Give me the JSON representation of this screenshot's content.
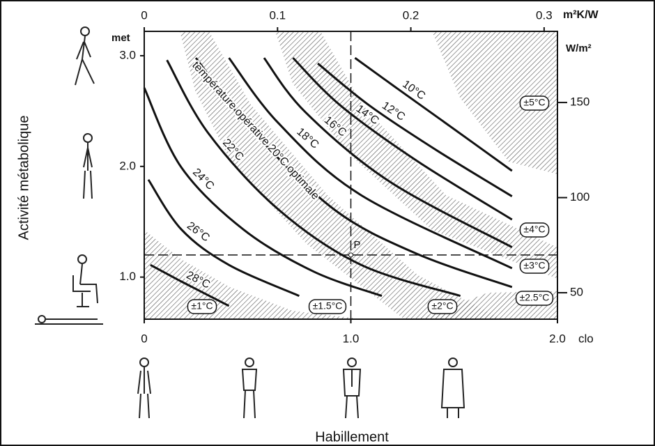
{
  "chart_data": {
    "type": "line",
    "x_label": "Habillement",
    "y_label": "Activité métabolique",
    "x_unit": "clo",
    "x2_unit": "m²K/W",
    "y_unit": "met",
    "y2_unit": "W/m²",
    "xlim": [
      0,
      2.0
    ],
    "xticks": [
      0,
      {
        "value": 1.0,
        "label": "1.0"
      },
      {
        "value": 2.0,
        "label": "2.0"
      }
    ],
    "x2lim": [
      0,
      0.31
    ],
    "x2ticks": [
      0,
      0.1,
      0.2,
      0.3
    ],
    "ylim": [
      0.62,
      3.22
    ],
    "yticks": [
      {
        "value": 1.0,
        "label": "1.0"
      },
      {
        "value": 2.0,
        "label": "2.0"
      },
      {
        "value": 3.0,
        "label": "3.0"
      }
    ],
    "y2lim": [
      36.1,
      187.4
    ],
    "y2ticks": [
      50,
      100,
      150
    ],
    "color": "#111111",
    "grid": false,
    "series": [
      {
        "name": "10°C",
        "x": [
          1.02,
          1.22,
          1.46,
          1.78
        ],
        "values": [
          2.98,
          2.71,
          2.39,
          1.96
        ]
      },
      {
        "name": "12°C",
        "x": [
          0.84,
          1.09,
          1.42,
          1.78
        ],
        "values": [
          2.93,
          2.55,
          2.14,
          1.73
        ]
      },
      {
        "name": "14°C",
        "x": [
          0.72,
          0.95,
          1.32,
          1.78
        ],
        "values": [
          2.98,
          2.55,
          2.05,
          1.52
        ]
      },
      {
        "name": "16°C",
        "x": [
          0.58,
          0.78,
          1.19,
          1.78
        ],
        "values": [
          2.98,
          2.49,
          1.86,
          1.27
        ]
      },
      {
        "name": "18°C",
        "x": [
          0.41,
          0.65,
          1.05,
          1.78
        ],
        "values": [
          2.98,
          2.39,
          1.74,
          1.08
        ]
      },
      {
        "name": "température opérative 20°C optimale",
        "x": [
          0.25,
          0.52,
          0.92,
          1.32,
          1.78
        ],
        "values": [
          2.98,
          2.33,
          1.61,
          1.21,
          0.91
        ]
      },
      {
        "name": "22°C",
        "x": [
          0.11,
          0.31,
          0.65,
          1.05,
          1.53
        ],
        "values": [
          2.96,
          2.3,
          1.61,
          1.11,
          0.83
        ]
      },
      {
        "name": "24°C",
        "x": [
          0,
          0.18,
          0.48,
          0.82,
          1.15
        ],
        "values": [
          2.71,
          1.99,
          1.43,
          1.05,
          0.83
        ]
      },
      {
        "name": "26°C",
        "x": [
          0.02,
          0.18,
          0.41,
          0.75
        ],
        "values": [
          1.88,
          1.43,
          1.11,
          0.83
        ]
      },
      {
        "name": "28°C",
        "x": [
          0.03,
          0.18,
          0.41
        ],
        "values": [
          1.11,
          0.96,
          0.74
        ]
      }
    ],
    "tolerances": [
      "±1°C",
      "±1.5°C",
      "±2°C",
      "±2.5°C",
      "±3°C",
      "±4°C",
      "±5°C"
    ],
    "point": {
      "label": "P",
      "x": 1.0,
      "y": 1.2
    }
  }
}
